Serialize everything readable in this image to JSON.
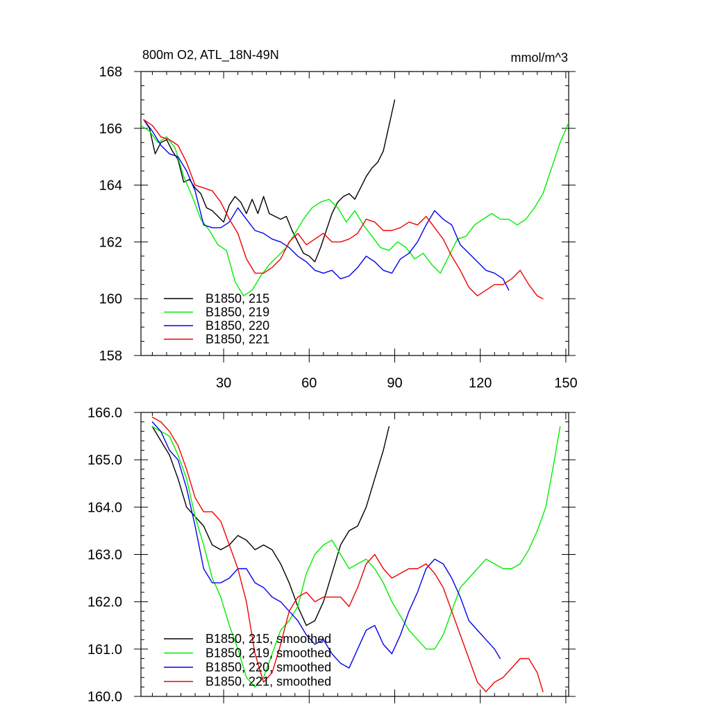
{
  "chart_data": [
    {
      "type": "line",
      "title": "800m O2, ATL_18N-49N",
      "units": "mmol/m^3",
      "xlabel": "",
      "ylabel": "",
      "xlim": [
        1,
        151
      ],
      "ylim": [
        158,
        168
      ],
      "xticks": [
        30,
        60,
        90,
        120,
        150
      ],
      "xtick_labels": [
        "30",
        "60",
        "90",
        "120",
        "150"
      ],
      "yticks": [
        158,
        160,
        162,
        164,
        166,
        168
      ],
      "ytick_labels": [
        "158",
        "160",
        "162",
        "164",
        "166",
        "168"
      ],
      "legend_position": "bottom-left",
      "series": [
        {
          "name": "B1850, 215",
          "color": "#000000",
          "x": [
            2,
            4,
            6,
            8,
            10,
            12,
            14,
            16,
            18,
            20,
            22,
            24,
            26,
            28,
            30,
            32,
            34,
            36,
            38,
            40,
            42,
            44,
            46,
            48,
            50,
            52,
            54,
            56,
            58,
            60,
            62,
            64,
            66,
            68,
            70,
            72,
            74,
            76,
            78,
            80,
            82,
            84,
            86,
            88,
            90
          ],
          "y": [
            166.3,
            166.0,
            165.1,
            165.5,
            165.6,
            165.2,
            164.9,
            164.1,
            164.2,
            163.9,
            163.7,
            163.2,
            163.1,
            162.9,
            162.7,
            163.3,
            163.6,
            163.4,
            163.0,
            163.5,
            163.0,
            163.6,
            163.0,
            162.9,
            162.8,
            162.9,
            162.4,
            162.0,
            161.6,
            161.5,
            161.3,
            161.8,
            162.4,
            163.0,
            163.4,
            163.6,
            163.7,
            163.5,
            163.9,
            164.3,
            164.6,
            164.8,
            165.2,
            166.1,
            167.0
          ]
        },
        {
          "name": "B1850, 219",
          "color": "#00ee00",
          "x": [
            1,
            4,
            7,
            10,
            13,
            16,
            19,
            22,
            25,
            28,
            31,
            34,
            37,
            40,
            43,
            46,
            49,
            52,
            55,
            58,
            61,
            64,
            67,
            70,
            73,
            76,
            79,
            82,
            85,
            88,
            91,
            94,
            97,
            100,
            103,
            106,
            109,
            112,
            115,
            118,
            121,
            124,
            127,
            130,
            133,
            136,
            139,
            142,
            145,
            148,
            151
          ],
          "y": [
            166.1,
            165.9,
            165.5,
            165.7,
            165.3,
            164.3,
            163.6,
            162.8,
            162.4,
            161.9,
            161.7,
            160.6,
            160.1,
            160.3,
            160.8,
            161.2,
            161.5,
            161.8,
            162.3,
            162.8,
            163.2,
            163.4,
            163.5,
            163.2,
            162.7,
            163.1,
            162.6,
            162.2,
            161.8,
            161.7,
            162.0,
            161.8,
            161.4,
            161.6,
            161.2,
            160.9,
            161.5,
            162.1,
            162.2,
            162.6,
            162.8,
            163.0,
            162.8,
            162.8,
            162.6,
            162.8,
            163.2,
            163.7,
            164.6,
            165.5,
            166.2
          ]
        },
        {
          "name": "B1850, 220",
          "color": "#0000ee",
          "x": [
            2,
            5,
            8,
            11,
            14,
            17,
            20,
            23,
            26,
            29,
            32,
            35,
            38,
            41,
            44,
            47,
            50,
            53,
            56,
            59,
            62,
            65,
            68,
            71,
            74,
            77,
            80,
            83,
            86,
            89,
            92,
            95,
            98,
            101,
            104,
            107,
            110,
            113,
            116,
            119,
            122,
            125,
            128,
            130
          ],
          "y": [
            166.3,
            165.9,
            165.4,
            165.1,
            165.0,
            164.5,
            163.8,
            162.6,
            162.5,
            162.5,
            162.7,
            163.2,
            162.8,
            162.4,
            162.3,
            162.1,
            162.0,
            161.8,
            161.5,
            161.3,
            161.0,
            160.9,
            161.0,
            160.7,
            160.8,
            161.1,
            161.5,
            161.3,
            161.0,
            160.9,
            161.4,
            161.6,
            162.0,
            162.6,
            163.1,
            162.8,
            162.6,
            161.9,
            161.6,
            161.3,
            161.0,
            160.9,
            160.7,
            160.3
          ]
        },
        {
          "name": "B1850, 221",
          "color": "#ee0000",
          "x": [
            2,
            5,
            8,
            11,
            14,
            17,
            20,
            23,
            26,
            29,
            32,
            35,
            38,
            41,
            44,
            47,
            50,
            53,
            56,
            59,
            62,
            65,
            68,
            71,
            74,
            77,
            80,
            83,
            86,
            89,
            92,
            95,
            98,
            101,
            104,
            107,
            110,
            113,
            116,
            119,
            122,
            125,
            128,
            131,
            134,
            137,
            140,
            142
          ],
          "y": [
            166.3,
            166.1,
            165.7,
            165.6,
            165.4,
            164.8,
            164.0,
            163.9,
            163.8,
            163.4,
            162.8,
            162.3,
            161.4,
            160.9,
            160.9,
            161.1,
            161.4,
            162.0,
            162.3,
            161.9,
            162.1,
            162.3,
            162.0,
            162.0,
            162.1,
            162.3,
            162.8,
            162.7,
            162.4,
            162.4,
            162.5,
            162.7,
            162.6,
            162.9,
            162.5,
            162.1,
            161.5,
            161.0,
            160.4,
            160.1,
            160.3,
            160.5,
            160.5,
            160.7,
            161.0,
            160.5,
            160.1,
            160.0
          ]
        }
      ]
    },
    {
      "type": "line",
      "title": "",
      "xlabel": "",
      "ylabel": "",
      "xlim": [
        1,
        151
      ],
      "ylim": [
        160.0,
        166.0
      ],
      "xticks": [
        30,
        60,
        90,
        120,
        150
      ],
      "yticks": [
        160.0,
        161.0,
        162.0,
        163.0,
        164.0,
        165.0,
        166.0
      ],
      "ytick_labels": [
        "160.0",
        "161.0",
        "162.0",
        "163.0",
        "164.0",
        "165.0",
        "166.0"
      ],
      "legend_position": "bottom-left",
      "series": [
        {
          "name": "B1850, 215, smoothed",
          "color": "#000000",
          "x": [
            5,
            8,
            11,
            14,
            17,
            20,
            23,
            26,
            29,
            32,
            35,
            38,
            41,
            44,
            47,
            50,
            53,
            56,
            59,
            62,
            65,
            68,
            71,
            74,
            77,
            80,
            83,
            86,
            88
          ],
          "y": [
            165.7,
            165.4,
            165.1,
            164.6,
            164.0,
            163.8,
            163.6,
            163.2,
            163.1,
            163.2,
            163.4,
            163.3,
            163.1,
            163.2,
            163.1,
            162.8,
            162.4,
            161.9,
            161.5,
            161.6,
            162.0,
            162.6,
            163.2,
            163.5,
            163.6,
            164.0,
            164.6,
            165.2,
            165.7
          ]
        },
        {
          "name": "B1850, 219, smoothed",
          "color": "#00ee00",
          "x": [
            5,
            8,
            11,
            14,
            17,
            20,
            23,
            26,
            29,
            32,
            35,
            38,
            41,
            44,
            47,
            50,
            53,
            56,
            59,
            62,
            65,
            68,
            71,
            74,
            77,
            80,
            83,
            86,
            89,
            92,
            95,
            98,
            101,
            104,
            107,
            110,
            113,
            116,
            119,
            122,
            125,
            128,
            131,
            134,
            137,
            140,
            143,
            146,
            148
          ],
          "y": [
            165.7,
            165.6,
            165.5,
            165.1,
            164.6,
            163.8,
            163.2,
            162.5,
            162.1,
            161.5,
            161.0,
            160.4,
            160.2,
            160.4,
            160.9,
            161.4,
            161.6,
            161.9,
            162.6,
            163.0,
            163.2,
            163.3,
            163.0,
            162.7,
            162.8,
            162.9,
            162.7,
            162.4,
            162.0,
            161.7,
            161.4,
            161.2,
            161.0,
            161.0,
            161.3,
            161.8,
            162.3,
            162.5,
            162.7,
            162.9,
            162.8,
            162.7,
            162.7,
            162.8,
            163.1,
            163.5,
            164.0,
            165.0,
            165.7
          ]
        },
        {
          "name": "B1850, 220, smoothed",
          "color": "#0000ee",
          "x": [
            5,
            8,
            11,
            14,
            17,
            20,
            23,
            26,
            29,
            32,
            35,
            38,
            41,
            44,
            47,
            50,
            53,
            56,
            59,
            62,
            65,
            68,
            71,
            74,
            77,
            80,
            83,
            86,
            89,
            92,
            95,
            98,
            101,
            104,
            107,
            110,
            113,
            116,
            119,
            122,
            125,
            127
          ],
          "y": [
            165.8,
            165.6,
            165.2,
            165.0,
            164.4,
            163.6,
            162.7,
            162.4,
            162.4,
            162.5,
            162.7,
            162.7,
            162.4,
            162.3,
            162.1,
            162.0,
            161.8,
            161.6,
            161.3,
            161.1,
            161.2,
            160.9,
            160.7,
            160.6,
            161.0,
            161.4,
            161.5,
            161.1,
            160.9,
            161.3,
            161.8,
            162.2,
            162.7,
            162.9,
            162.8,
            162.5,
            162.1,
            161.6,
            161.4,
            161.2,
            161.0,
            160.8
          ]
        },
        {
          "name": "B1850, 221, smoothed",
          "color": "#ee0000",
          "x": [
            5,
            8,
            11,
            14,
            17,
            20,
            23,
            26,
            29,
            32,
            35,
            38,
            41,
            44,
            47,
            50,
            53,
            56,
            59,
            62,
            65,
            68,
            71,
            74,
            77,
            80,
            83,
            86,
            89,
            92,
            95,
            98,
            101,
            104,
            107,
            110,
            113,
            116,
            119,
            122,
            125,
            128,
            131,
            134,
            137,
            140,
            142
          ],
          "y": [
            165.9,
            165.8,
            165.6,
            165.3,
            164.8,
            164.2,
            163.9,
            163.9,
            163.7,
            163.2,
            162.7,
            162.0,
            160.9,
            160.3,
            160.5,
            161.1,
            161.8,
            162.1,
            162.2,
            162.0,
            162.1,
            162.1,
            162.1,
            161.9,
            162.3,
            162.8,
            163.0,
            162.7,
            162.5,
            162.6,
            162.7,
            162.7,
            162.8,
            162.6,
            162.3,
            161.8,
            161.3,
            160.8,
            160.3,
            160.1,
            160.3,
            160.4,
            160.6,
            160.8,
            160.8,
            160.5,
            160.1
          ]
        }
      ]
    }
  ]
}
